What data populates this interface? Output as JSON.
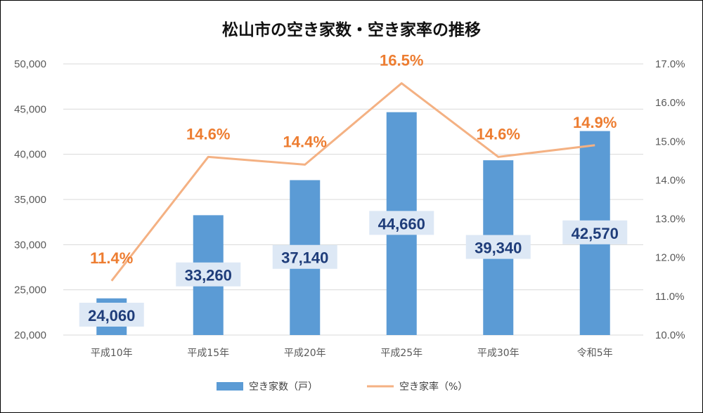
{
  "chart_data": {
    "type": "bar",
    "title": "松山市の空き家数・空き家率の推移",
    "categories": [
      "平成10年",
      "平成15年",
      "平成20年",
      "平成25年",
      "平成30年",
      "令和5年"
    ],
    "series": [
      {
        "name": "空き家数（戸）",
        "type": "bar",
        "axis": "left",
        "color": "#5b9bd5",
        "values": [
          24060,
          33260,
          37140,
          44660,
          39340,
          42570
        ],
        "labels": [
          "24,060",
          "33,260",
          "37,140",
          "44,660",
          "39,340",
          "42,570"
        ]
      },
      {
        "name": "空き家率（%）",
        "type": "line",
        "axis": "right",
        "color": "#f4b183",
        "label_color": "#ed7d31",
        "values": [
          11.4,
          14.6,
          14.4,
          16.5,
          14.6,
          14.9
        ],
        "labels": [
          "11.4%",
          "14.6%",
          "14.4%",
          "16.5%",
          "14.6%",
          "14.9%"
        ]
      }
    ],
    "y_left": {
      "range": [
        20000,
        50000
      ],
      "ticks": [
        50000,
        45000,
        40000,
        35000,
        30000,
        25000,
        20000
      ],
      "tick_labels": [
        "50,000",
        "45,000",
        "40,000",
        "35,000",
        "30,000",
        "25,000",
        "20,000"
      ]
    },
    "y_right": {
      "range": [
        10.0,
        17.0
      ],
      "ticks": [
        17.0,
        16.0,
        15.0,
        14.0,
        13.0,
        12.0,
        11.0,
        10.0
      ],
      "tick_labels": [
        "17.0%",
        "16.0%",
        "15.0%",
        "14.0%",
        "13.0%",
        "12.0%",
        "11.0%",
        "10.0%"
      ]
    },
    "grid": true,
    "legend_position": "bottom",
    "gridline_color": "#d9d9d9",
    "bar_label_box_color": "#dde8f5"
  }
}
